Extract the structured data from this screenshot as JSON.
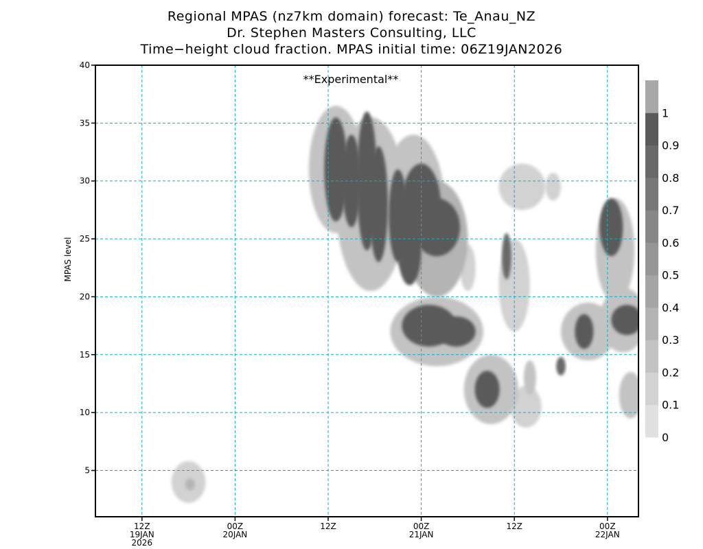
{
  "titles": {
    "line1": "Regional MPAS (nz7km domain) forecast: Te_Anau_NZ",
    "line2": "Dr. Stephen Masters Consulting, LLC",
    "line3": "Time−height cloud fraction.   MPAS initial time: 06Z19JAN2026"
  },
  "colors": {
    "grid": "#00b4c8",
    "watermark": "#e03c3c",
    "shades": [
      "#e1e1e1",
      "#d2d2d2",
      "#c3c3c3",
      "#b4b4b4",
      "#a5a5a5",
      "#969696",
      "#878787",
      "#787878",
      "#696969",
      "#5a5a5a",
      "#a8a8a8"
    ]
  },
  "chart_data": {
    "type": "heatmap",
    "watermark": "**Experimental**",
    "ylabel": "MPAS level",
    "ylim": [
      1,
      40
    ],
    "yticks": [
      5,
      10,
      15,
      20,
      25,
      30,
      35,
      40
    ],
    "xlim": [
      0,
      70
    ],
    "xticks": [
      {
        "x": 6,
        "labels": [
          "12Z",
          "19JAN",
          "2026"
        ]
      },
      {
        "x": 18,
        "labels": [
          "00Z",
          "20JAN"
        ]
      },
      {
        "x": 30,
        "labels": [
          "12Z"
        ]
      },
      {
        "x": 42,
        "labels": [
          "00Z",
          "21JAN"
        ]
      },
      {
        "x": 54,
        "labels": [
          "12Z"
        ]
      },
      {
        "x": 66,
        "labels": [
          "00Z",
          "22JAN"
        ]
      }
    ],
    "colorbar": {
      "levels": [
        0,
        0.1,
        0.2,
        0.3,
        0.4,
        0.5,
        0.6,
        0.7,
        0.8,
        0.9,
        1
      ],
      "labels": [
        "0",
        "0.1",
        "0.2",
        "0.3",
        "0.4",
        "0.5",
        "0.6",
        "0.7",
        "0.8",
        "0.9",
        "1"
      ]
    },
    "blobs": [
      {
        "x": 12,
        "y": 4,
        "v": 0.1,
        "rx": 2.2,
        "ry": 1.8
      },
      {
        "x": 12.2,
        "y": 3.8,
        "v": 0.35,
        "rx": 0.6,
        "ry": 0.5
      },
      {
        "x": 31,
        "y": 31,
        "v": 0.95,
        "rx": 1.5,
        "ry": 4.5
      },
      {
        "x": 33,
        "y": 30,
        "v": 0.95,
        "rx": 1.2,
        "ry": 4
      },
      {
        "x": 35,
        "y": 30,
        "v": 0.95,
        "rx": 1.3,
        "ry": 6
      },
      {
        "x": 36.5,
        "y": 28,
        "v": 0.95,
        "rx": 1.2,
        "ry": 5
      },
      {
        "x": 39,
        "y": 27,
        "v": 0.95,
        "rx": 1.2,
        "ry": 4
      },
      {
        "x": 40.5,
        "y": 24,
        "v": 0.95,
        "rx": 1.5,
        "ry": 3
      },
      {
        "x": 42,
        "y": 28,
        "v": 0.95,
        "rx": 2.5,
        "ry": 3.5
      },
      {
        "x": 44,
        "y": 26,
        "v": 0.95,
        "rx": 3,
        "ry": 2.5
      },
      {
        "x": 43,
        "y": 17.5,
        "v": 0.95,
        "rx": 3.5,
        "ry": 1.8
      },
      {
        "x": 46.5,
        "y": 17,
        "v": 0.95,
        "rx": 2.5,
        "ry": 1.3
      },
      {
        "x": 50.5,
        "y": 12,
        "v": 0.95,
        "rx": 1.6,
        "ry": 1.6
      },
      {
        "x": 53,
        "y": 23.5,
        "v": 0.85,
        "rx": 0.6,
        "ry": 2
      },
      {
        "x": 63,
        "y": 17,
        "v": 0.9,
        "rx": 1.2,
        "ry": 1.5
      },
      {
        "x": 66.5,
        "y": 26,
        "v": 0.95,
        "rx": 1.5,
        "ry": 2.5
      },
      {
        "x": 68.5,
        "y": 18,
        "v": 0.95,
        "rx": 2,
        "ry": 1.3
      },
      {
        "x": 60,
        "y": 14,
        "v": 0.8,
        "rx": 0.6,
        "ry": 0.8
      },
      {
        "x": 31,
        "y": 31,
        "v": 0.2,
        "rx": 3.5,
        "ry": 5.5
      },
      {
        "x": 35.5,
        "y": 28,
        "v": 0.2,
        "rx": 4.5,
        "ry": 7.5
      },
      {
        "x": 41,
        "y": 28,
        "v": 0.2,
        "rx": 4,
        "ry": 6
      },
      {
        "x": 44,
        "y": 25,
        "v": 0.3,
        "rx": 4,
        "ry": 5
      },
      {
        "x": 44,
        "y": 17,
        "v": 0.2,
        "rx": 6,
        "ry": 3
      },
      {
        "x": 51,
        "y": 12,
        "v": 0.2,
        "rx": 3.5,
        "ry": 3
      },
      {
        "x": 54,
        "y": 21,
        "v": 0.15,
        "rx": 2,
        "ry": 4
      },
      {
        "x": 55,
        "y": 29.5,
        "v": 0.15,
        "rx": 3,
        "ry": 2
      },
      {
        "x": 59,
        "y": 29.5,
        "v": 0.15,
        "rx": 1,
        "ry": 1.2
      },
      {
        "x": 63.5,
        "y": 17,
        "v": 0.2,
        "rx": 3.5,
        "ry": 2.5
      },
      {
        "x": 67,
        "y": 24,
        "v": 0.2,
        "rx": 2.5,
        "ry": 4.5
      },
      {
        "x": 68,
        "y": 18,
        "v": 0.2,
        "rx": 3,
        "ry": 2.8
      },
      {
        "x": 69,
        "y": 11.5,
        "v": 0.2,
        "rx": 1.5,
        "ry": 2
      },
      {
        "x": 55.5,
        "y": 10.5,
        "v": 0.15,
        "rx": 2,
        "ry": 1.8
      },
      {
        "x": 48,
        "y": 22.5,
        "v": 0.15,
        "rx": 1,
        "ry": 2
      },
      {
        "x": 56,
        "y": 13,
        "v": 0.2,
        "rx": 0.8,
        "ry": 1.5
      }
    ]
  }
}
